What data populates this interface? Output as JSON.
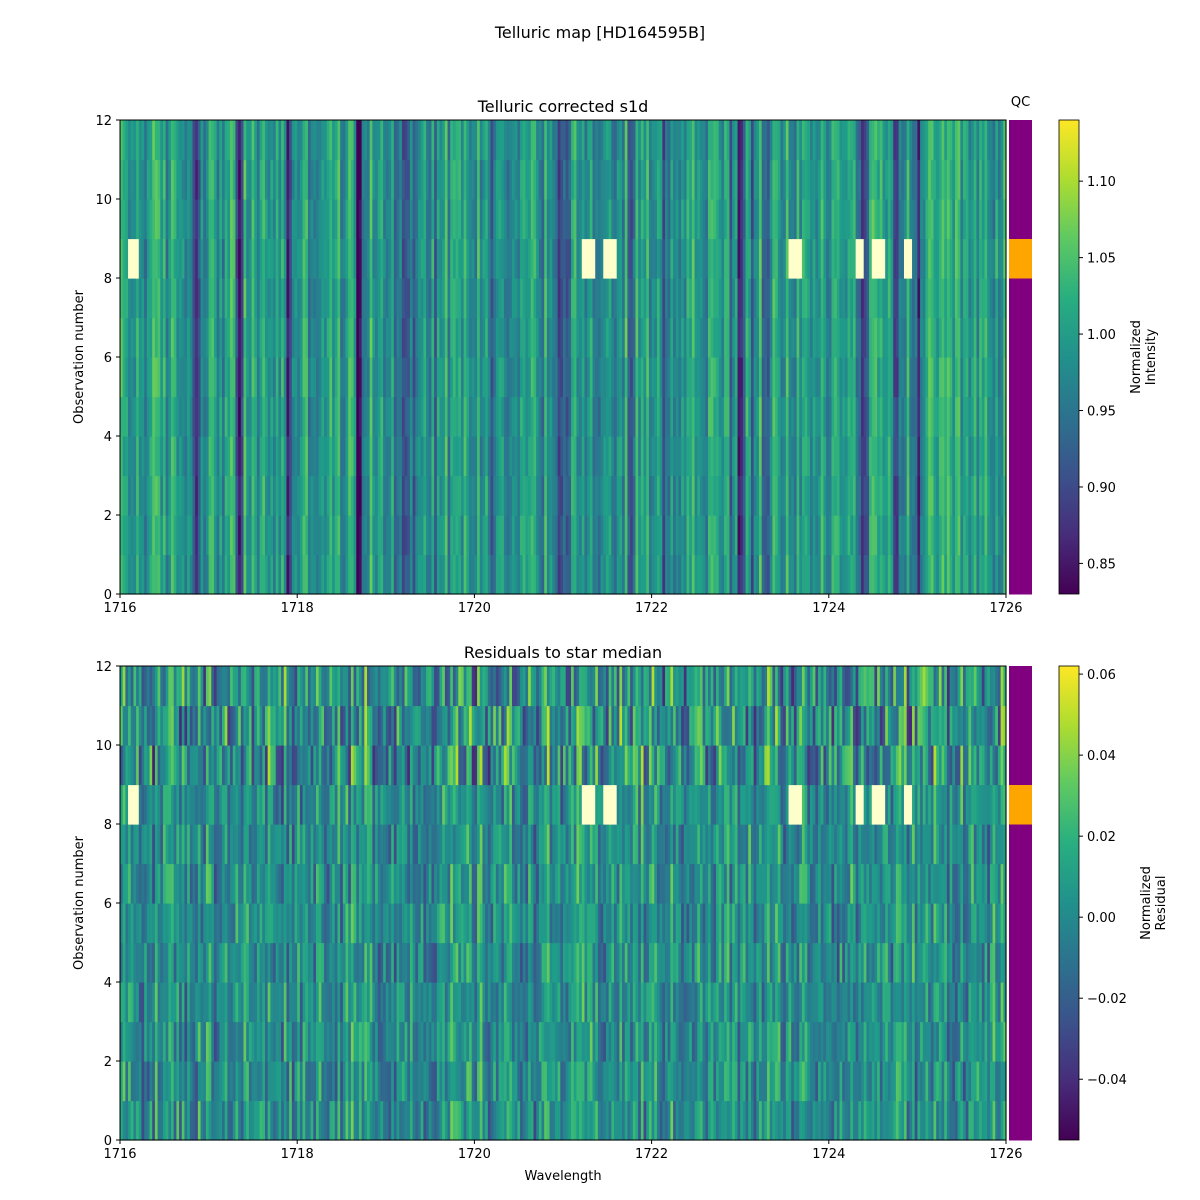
{
  "figure": {
    "title": "Telluric map [HD164595B]"
  },
  "qc_label": "QC",
  "colors": {
    "qc_pass": "#800080",
    "qc_fail": "#FFA500"
  },
  "chart_data": [
    {
      "type": "heatmap",
      "title": "Telluric corrected s1d",
      "xlabel": "",
      "ylabel": "Observation number",
      "xlim": [
        1716,
        1726
      ],
      "ylim": [
        0,
        12
      ],
      "xticks": [
        1716,
        1718,
        1720,
        1722,
        1724,
        1726
      ],
      "yticks": [
        0,
        2,
        4,
        6,
        8,
        10,
        12
      ],
      "colormap": "viridis",
      "colorbar": {
        "label": "Normalized\nIntensity",
        "range": [
          0.83,
          1.14
        ],
        "ticks": [
          "0.85",
          "0.90",
          "0.95",
          "1.00",
          "1.05",
          "1.10"
        ]
      },
      "qc_flagged_rows": [
        8
      ],
      "qc_row_status": [
        "pass",
        "pass",
        "pass",
        "pass",
        "pass",
        "pass",
        "pass",
        "pass",
        "fail",
        "pass",
        "pass",
        "pass"
      ],
      "absorption_lines": [
        1716.85,
        1717.35,
        1717.9,
        1718.7,
        1719.2,
        1720.95,
        1721.05,
        1723.0,
        1723.3,
        1724.4,
        1724.75,
        1725.0
      ],
      "flagged_row_bright_ranges": [
        [
          1716.1,
          1716.2
        ],
        [
          1721.2,
          1721.35
        ],
        [
          1721.45,
          1721.6
        ],
        [
          1723.55,
          1723.7
        ],
        [
          1724.3,
          1724.4
        ],
        [
          1724.5,
          1724.65
        ],
        [
          1724.85,
          1724.95
        ]
      ]
    },
    {
      "type": "heatmap",
      "title": "Residuals to star median",
      "xlabel": "Wavelength",
      "ylabel": "Observation number",
      "xlim": [
        1716,
        1726
      ],
      "ylim": [
        0,
        12
      ],
      "xticks": [
        1716,
        1718,
        1720,
        1722,
        1724,
        1726
      ],
      "yticks": [
        0,
        2,
        4,
        6,
        8,
        10,
        12
      ],
      "colormap": "viridis",
      "colorbar": {
        "label": "Normalized\nResidual",
        "range": [
          -0.055,
          0.062
        ],
        "ticks": [
          "−0.04",
          "−0.02",
          "0.00",
          "0.02",
          "0.04",
          "0.06"
        ]
      },
      "qc_flagged_rows": [
        8
      ],
      "qc_row_status": [
        "pass",
        "pass",
        "pass",
        "pass",
        "pass",
        "pass",
        "pass",
        "pass",
        "fail",
        "pass",
        "pass",
        "pass"
      ],
      "flagged_row_bright_ranges": [
        [
          1716.1,
          1716.2
        ],
        [
          1721.2,
          1721.35
        ],
        [
          1721.45,
          1721.6
        ],
        [
          1723.55,
          1723.7
        ],
        [
          1724.3,
          1724.4
        ],
        [
          1724.5,
          1724.65
        ],
        [
          1724.85,
          1724.95
        ]
      ]
    }
  ]
}
